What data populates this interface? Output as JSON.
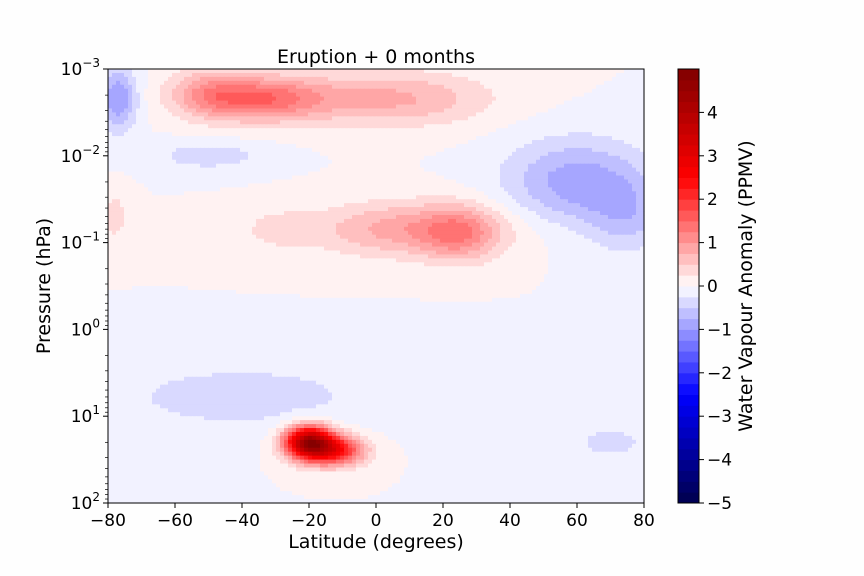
{
  "chart_data": {
    "type": "heatmap",
    "subtype": "filled-contour",
    "title": "Eruption + 0 months",
    "xlabel": "Latitude (degrees)",
    "ylabel": "Pressure (hPa)",
    "xlim": [
      -80,
      80
    ],
    "ylim": [
      100,
      0.001
    ],
    "yscale": "log",
    "x_ticks": [
      -80,
      -60,
      -40,
      -20,
      0,
      20,
      40,
      60,
      80
    ],
    "x_tick_labels": [
      "−80",
      "−60",
      "−40",
      "−20",
      "0",
      "20",
      "40",
      "60",
      "80"
    ],
    "y_ticks": [
      0.001,
      0.01,
      0.1,
      1,
      10,
      100
    ],
    "y_tick_labels": [
      {
        "base": "10",
        "exp": "−3"
      },
      {
        "base": "10",
        "exp": "−2"
      },
      {
        "base": "10",
        "exp": "−1"
      },
      {
        "base": "10",
        "exp": "0"
      },
      {
        "base": "10",
        "exp": "1"
      },
      {
        "base": "10",
        "exp": "2"
      }
    ],
    "colorbar": {
      "label": "Water Vapour Anomaly (PPMV)",
      "range": [
        -5,
        5
      ],
      "ticks": [
        -5,
        -4,
        -3,
        -2,
        -1,
        0,
        1,
        2,
        3,
        4
      ],
      "tick_labels": [
        "−5",
        "−4",
        "−3",
        "−2",
        "−1",
        "0",
        "1",
        "2",
        "3",
        "4"
      ],
      "colormap": "seismic",
      "levels": 40
    },
    "features": [
      {
        "lat": -20,
        "pressure": 20,
        "value": 4.2,
        "lat_spread": 5,
        "p_spread_decades": 0.13
      },
      {
        "lat": -12,
        "pressure": 25,
        "value": 2.2,
        "lat_spread": 6,
        "p_spread_decades": 0.12
      },
      {
        "lat": -35,
        "pressure": 0.0022,
        "value": 1.4,
        "lat_spread": 14,
        "p_spread_decades": 0.18
      },
      {
        "lat": -50,
        "pressure": 0.0018,
        "value": 0.6,
        "lat_spread": 8,
        "p_spread_decades": 0.2
      },
      {
        "lat": 5,
        "pressure": 0.0022,
        "value": 0.8,
        "lat_spread": 20,
        "p_spread_decades": 0.22
      },
      {
        "lat": 10,
        "pressure": 0.07,
        "value": 0.9,
        "lat_spread": 20,
        "p_spread_decades": 0.22
      },
      {
        "lat": 25,
        "pressure": 0.08,
        "value": 0.8,
        "lat_spread": 8,
        "p_spread_decades": 0.22
      },
      {
        "lat": -30,
        "pressure": 0.07,
        "value": 0.3,
        "lat_spread": 7,
        "p_spread_decades": 0.16
      },
      {
        "lat": -77,
        "pressure": 0.0022,
        "value": -1.0,
        "lat_spread": 4,
        "p_spread_decades": 0.25
      },
      {
        "lat": 60,
        "pressure": 0.02,
        "value": -0.9,
        "lat_spread": 15,
        "p_spread_decades": 0.35
      },
      {
        "lat": 75,
        "pressure": 0.05,
        "value": -0.5,
        "lat_spread": 8,
        "p_spread_decades": 0.3
      },
      {
        "lat": -40,
        "pressure": 6,
        "value": -0.4,
        "lat_spread": 28,
        "p_spread_decades": 0.28
      },
      {
        "lat": -50,
        "pressure": 0.01,
        "value": -0.4,
        "lat_spread": 12,
        "p_spread_decades": 0.12
      },
      {
        "lat": 70,
        "pressure": 20,
        "value": -0.3,
        "lat_spread": 12,
        "p_spread_decades": 0.2
      },
      {
        "lat": -78,
        "pressure": 0.05,
        "value": 0.4,
        "lat_spread": 3,
        "p_spread_decades": 0.2
      },
      {
        "lat": 0,
        "pressure": 1.0,
        "value": -0.1,
        "lat_spread": 45,
        "p_spread_decades": 0.12
      }
    ]
  }
}
